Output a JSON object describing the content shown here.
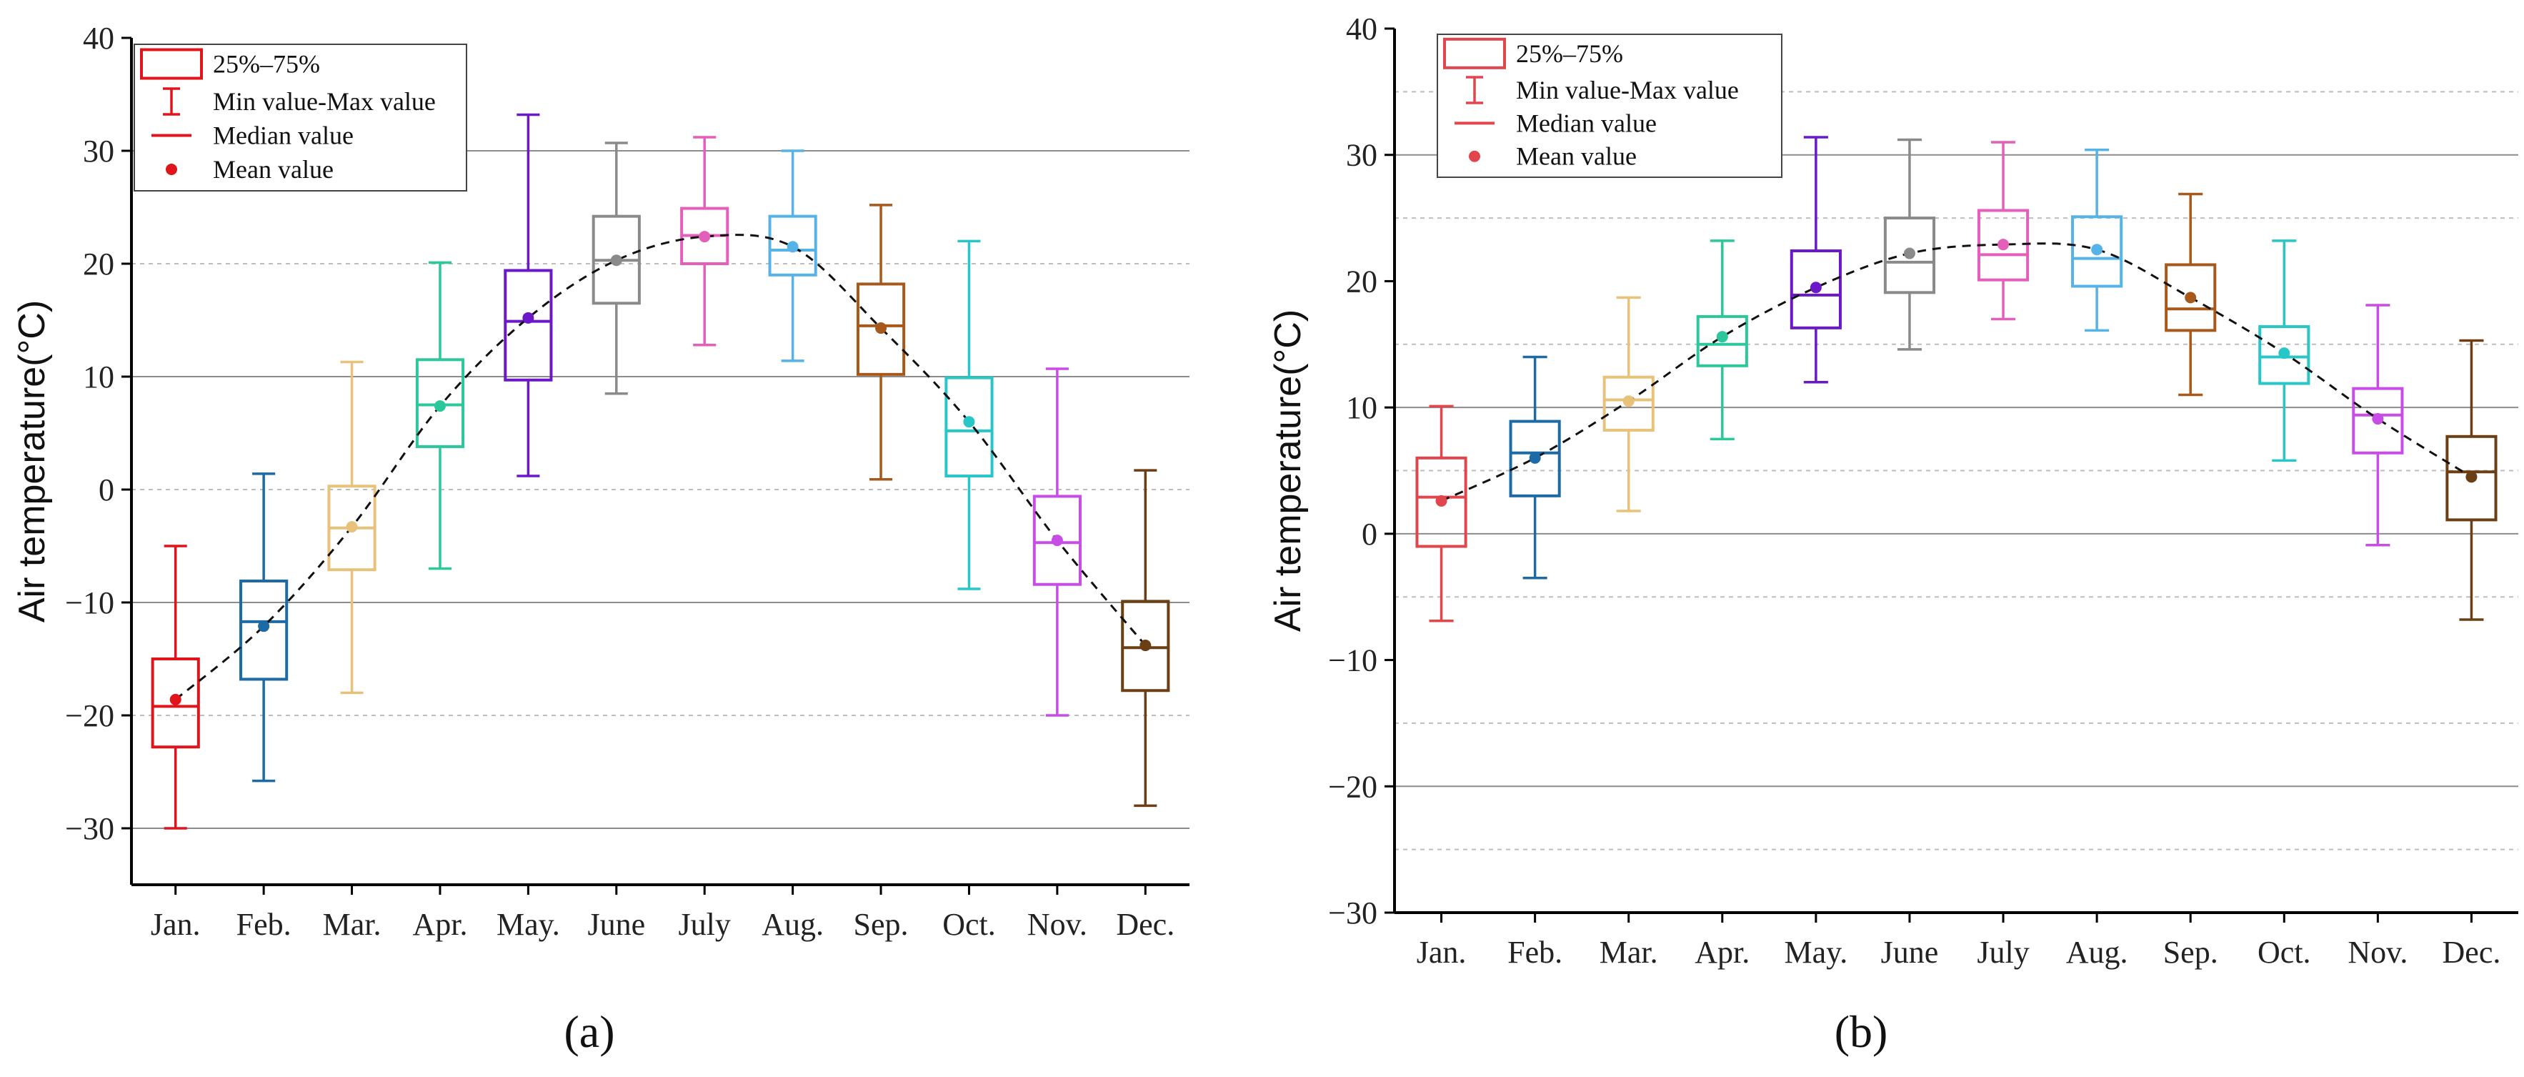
{
  "chart_data": [
    {
      "type": "box",
      "panel_label": "(a)",
      "ylabel": "Air temperature(°C)",
      "xlabel": "",
      "ylim": [
        -35,
        40
      ],
      "yticks": [
        -30,
        -20,
        -10,
        0,
        10,
        20,
        30,
        40
      ],
      "categories": [
        "Jan.",
        "Feb.",
        "Mar.",
        "Apr.",
        "May.",
        "June",
        "July",
        "Aug.",
        "Sep.",
        "Oct.",
        "Nov.",
        "Dec."
      ],
      "min": [
        -30.0,
        -25.8,
        -18.0,
        -7.0,
        1.2,
        8.5,
        12.8,
        11.4,
        0.9,
        -8.8,
        -20.0,
        -28.0
      ],
      "q1": [
        -22.8,
        -16.8,
        -7.1,
        3.8,
        9.7,
        16.5,
        20.0,
        19.0,
        10.2,
        1.2,
        -8.4,
        -17.8
      ],
      "median": [
        -19.2,
        -11.7,
        -3.4,
        7.5,
        14.9,
        20.3,
        22.5,
        21.2,
        14.5,
        5.2,
        -4.7,
        -14.0
      ],
      "q3": [
        -15.0,
        -8.1,
        0.3,
        11.5,
        19.4,
        24.2,
        24.9,
        24.2,
        18.2,
        9.9,
        -0.6,
        -9.9
      ],
      "max": [
        -5.0,
        1.4,
        11.3,
        20.1,
        33.2,
        30.7,
        31.2,
        30.0,
        25.2,
        22.0,
        10.7,
        1.7
      ],
      "mean": [
        -18.6,
        -12.1,
        -3.3,
        7.4,
        15.2,
        20.3,
        22.4,
        21.5,
        14.3,
        6.0,
        -4.5,
        -13.8
      ],
      "colors": [
        "#e0141b",
        "#1d6aa5",
        "#e8c27a",
        "#2cc79a",
        "#6b18c9",
        "#8a8a8a",
        "#e45fba",
        "#55b3e7",
        "#a6591b",
        "#28c6c6",
        "#c74de6",
        "#6b3e14"
      ],
      "grid_major": [
        -30,
        -10,
        10,
        30
      ],
      "grid_minor": [
        -20,
        0,
        20
      ],
      "legend": {
        "position": "top-left",
        "items": [
          "25%–75%",
          "Min value-Max value",
          "Median value",
          "Mean value"
        ],
        "color": "#e0141b"
      },
      "trend": "dashed curve through monthly means"
    },
    {
      "type": "box",
      "panel_label": "(b)",
      "ylabel": "Air temperature(°C)",
      "xlabel": "",
      "ylim": [
        -30,
        40
      ],
      "yticks": [
        -30,
        -20,
        -10,
        0,
        10,
        20,
        30,
        40
      ],
      "categories": [
        "Jan.",
        "Feb.",
        "Mar.",
        "Apr.",
        "May.",
        "June",
        "July",
        "Aug.",
        "Sep.",
        "Oct.",
        "Nov.",
        "Dec."
      ],
      "min": [
        -6.9,
        -3.5,
        1.8,
        7.5,
        12.0,
        14.6,
        17.0,
        16.1,
        11.0,
        5.8,
        -0.9,
        -6.8
      ],
      "q1": [
        -1.0,
        3.0,
        8.2,
        13.3,
        16.3,
        19.1,
        20.1,
        19.6,
        16.1,
        11.9,
        6.4,
        1.1
      ],
      "median": [
        2.9,
        6.4,
        10.6,
        15.0,
        18.9,
        21.5,
        22.1,
        21.8,
        17.8,
        14.0,
        9.4,
        4.9
      ],
      "q3": [
        6.0,
        8.9,
        12.4,
        17.2,
        22.4,
        25.0,
        25.6,
        25.1,
        21.3,
        16.4,
        11.5,
        7.7
      ],
      "max": [
        10.1,
        14.0,
        18.7,
        23.2,
        31.4,
        31.2,
        31.0,
        30.4,
        26.9,
        23.2,
        18.1,
        15.3
      ],
      "mean": [
        2.6,
        6.0,
        10.5,
        15.6,
        19.5,
        22.2,
        22.9,
        22.5,
        18.7,
        14.3,
        9.1,
        4.5
      ],
      "colors": [
        "#e0464c",
        "#1d6aa5",
        "#e8c27a",
        "#2cc79a",
        "#6b18c9",
        "#8a8a8a",
        "#e45fba",
        "#55b3e7",
        "#a6591b",
        "#28c6c6",
        "#c74de6",
        "#6b3e14"
      ],
      "grid_major": [
        -20,
        0,
        10,
        30
      ],
      "grid_minor": [
        -25,
        -15,
        -5,
        5,
        15,
        25,
        35
      ],
      "legend": {
        "position": "top-left",
        "items": [
          "25%–75%",
          "Min value-Max value",
          "Median value",
          "Mean value"
        ],
        "color": "#e0464c"
      },
      "trend": "dashed curve through monthly means"
    }
  ]
}
